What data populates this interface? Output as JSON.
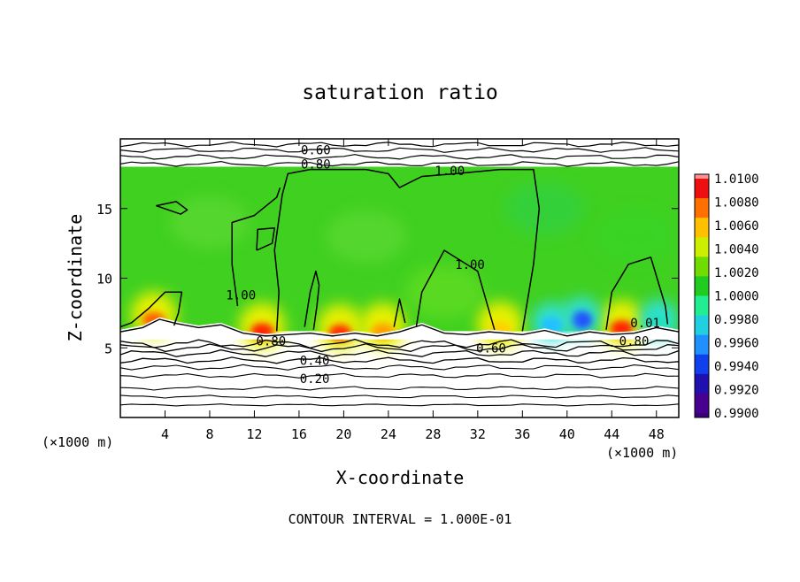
{
  "chart_data": {
    "type": "heatmap",
    "title": "saturation ratio",
    "xlabel": "X-coordinate",
    "ylabel": "Z-coordinate",
    "x_unit": "(×1000 m)",
    "x_unit_right": "(×1000 m)",
    "xlim": [
      0,
      50
    ],
    "ylim": [
      0,
      20
    ],
    "x_ticks": [
      4,
      8,
      12,
      16,
      20,
      24,
      28,
      32,
      36,
      40,
      44,
      48
    ],
    "y_ticks": [
      5,
      10,
      15
    ],
    "footer": "CONTOUR INTERVAL = 1.000E-01",
    "colorbar": {
      "labels": [
        "1.0100",
        "1.0080",
        "1.0060",
        "1.0040",
        "1.0020",
        "1.0000",
        "0.9980",
        "0.9960",
        "0.9940",
        "0.9920",
        "0.9900"
      ],
      "colors": [
        "#ee1010",
        "#ff7000",
        "#ffc000",
        "#ccee00",
        "#70dc00",
        "#20cc20",
        "#20ee90",
        "#20d0e0",
        "#2090ff",
        "#1040ee",
        "#2010b0",
        "#480090"
      ],
      "top_color": "#ff9090",
      "bottom_color": "#3a007a"
    },
    "field": {
      "cloud_top_z": 18,
      "cloud_base_z": 6.2,
      "background_color": "#40d020",
      "hot_spots": [
        {
          "x": 12.7,
          "z": 6.2,
          "color": "#ff2000"
        },
        {
          "x": 19.7,
          "z": 6.1,
          "color": "#ff3000"
        },
        {
          "x": 23.5,
          "z": 6.2,
          "color": "#ffa000"
        },
        {
          "x": 44.9,
          "z": 6.4,
          "color": "#ff2000"
        },
        {
          "x": 3.0,
          "z": 7.0,
          "color": "#ff6000"
        },
        {
          "x": 34.0,
          "z": 6.3,
          "color": "#ffd000"
        }
      ],
      "cold_spots": [
        {
          "x": 41.3,
          "z": 7.0,
          "color": "#2050ff"
        },
        {
          "x": 38.6,
          "z": 6.6,
          "color": "#20c0ff"
        },
        {
          "x": 48.2,
          "z": 6.8,
          "color": "#20e0c0"
        }
      ]
    },
    "contour_labels": [
      {
        "text": "0.60",
        "x": 17.5,
        "z": 19.2
      },
      {
        "text": "0.80",
        "x": 17.5,
        "z": 18.2
      },
      {
        "text": "1.00",
        "x": 29.5,
        "z": 17.7
      },
      {
        "text": "1.00",
        "x": 31.3,
        "z": 11.0
      },
      {
        "text": "1.00",
        "x": 10.8,
        "z": 8.8
      },
      {
        "text": "0.80",
        "x": 13.5,
        "z": 5.5
      },
      {
        "text": "0.40",
        "x": 17.4,
        "z": 4.1
      },
      {
        "text": "0.20",
        "x": 17.4,
        "z": 2.8
      },
      {
        "text": "0.60",
        "x": 33.2,
        "z": 5.0
      },
      {
        "text": "0.80",
        "x": 46.0,
        "z": 5.5
      },
      {
        "text": "0.01",
        "x": 47.0,
        "z": 6.8
      }
    ],
    "contour_levels_z": [
      0.9,
      1.5,
      2.1,
      3.0,
      3.6,
      4.1,
      4.6,
      5.0,
      5.3
    ],
    "upper_contour_levels_z": [
      18.2,
      18.7,
      19.2,
      19.6
    ]
  }
}
